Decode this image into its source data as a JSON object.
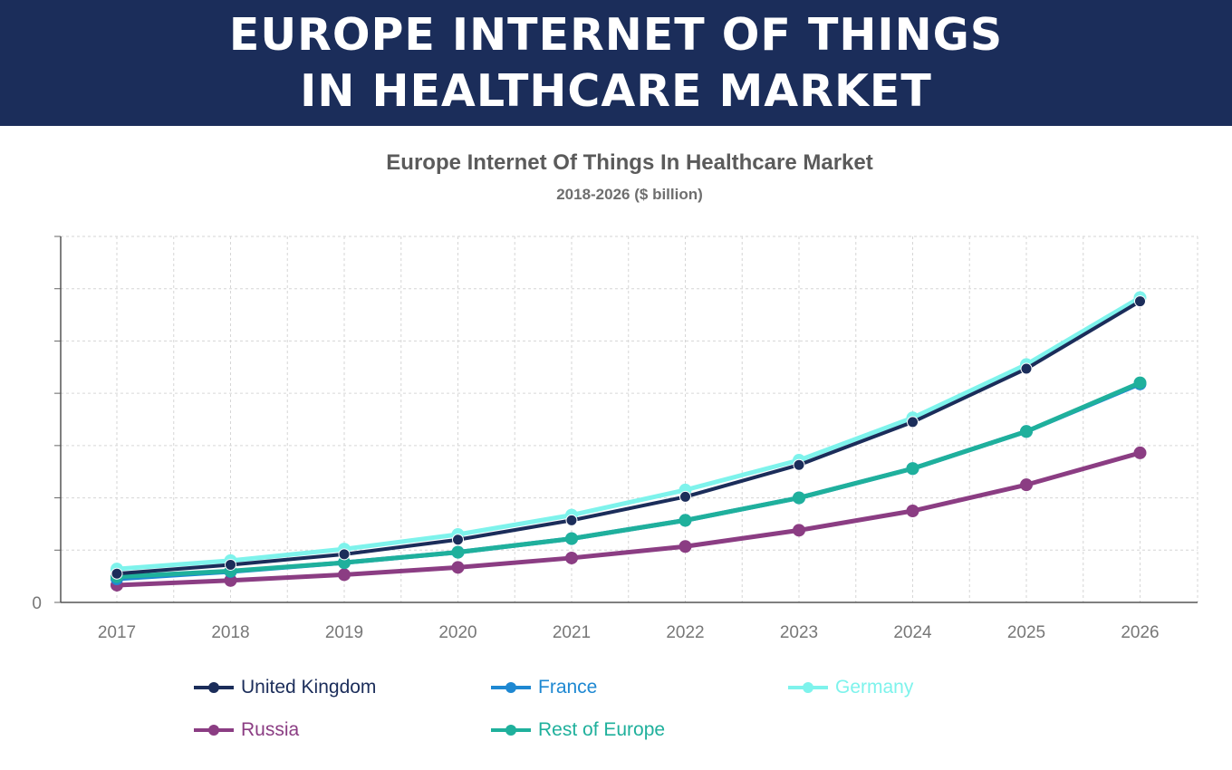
{
  "banner": {
    "title": "EUROPE INTERNET OF THINGS IN HEALTHCARE MARKET"
  },
  "chart_data": {
    "type": "line",
    "title": "Europe Internet Of Things In Healthcare Market",
    "subtitle": "2018-2026 ($ billion)",
    "xlabel": "",
    "ylabel": "",
    "x": [
      "2017",
      "2018",
      "2019",
      "2020",
      "2021",
      "2022",
      "2023",
      "2024",
      "2025",
      "2026"
    ],
    "ylim": [
      0,
      7
    ],
    "yticks": [
      "0",
      "",
      "",
      "",
      "",
      "",
      "",
      ""
    ],
    "grid": true,
    "legend_position": "bottom",
    "series": [
      {
        "name": "United Kingdom",
        "color": "#1b2d5a",
        "values": [
          0.55,
          0.72,
          0.92,
          1.2,
          1.57,
          2.02,
          2.63,
          3.45,
          4.47,
          5.76
        ]
      },
      {
        "name": "France",
        "color": "#1e88d2",
        "values": [
          0.45,
          0.59,
          0.76,
          0.96,
          1.22,
          1.57,
          2.0,
          2.56,
          3.27,
          4.18
        ]
      },
      {
        "name": "Germany",
        "color": "#7ef3ec",
        "values": [
          0.64,
          0.8,
          1.02,
          1.3,
          1.67,
          2.15,
          2.72,
          3.53,
          4.55,
          5.83
        ]
      },
      {
        "name": "Russia",
        "color": "#8b3d83",
        "values": [
          0.33,
          0.42,
          0.53,
          0.67,
          0.85,
          1.07,
          1.38,
          1.75,
          2.25,
          2.86
        ]
      },
      {
        "name": "Rest of Europe",
        "color": "#1fb09c",
        "values": [
          0.49,
          0.6,
          0.76,
          0.96,
          1.22,
          1.57,
          2.0,
          2.56,
          3.27,
          4.2
        ]
      }
    ]
  }
}
